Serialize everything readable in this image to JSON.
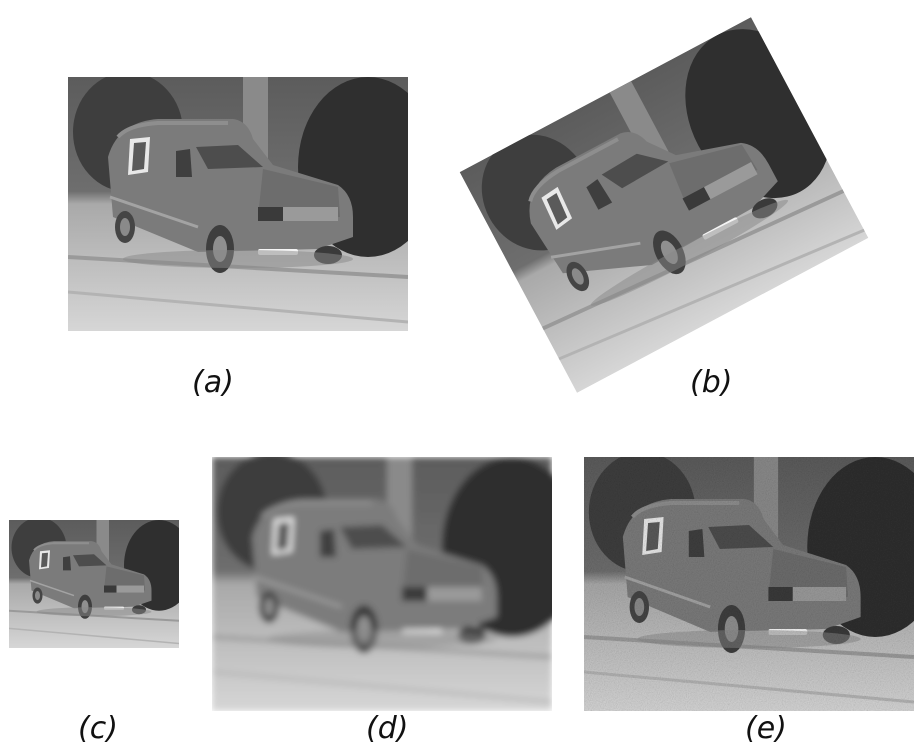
{
  "captions": {
    "a": "(a)",
    "b": "(b)",
    "c": "(c)",
    "d": "(d)",
    "e": "(e)"
  },
  "panels": [
    {
      "caption": "(a)",
      "variant": "original"
    },
    {
      "caption": "(b)",
      "variant": "rotated"
    },
    {
      "caption": "(c)",
      "variant": "downscaled"
    },
    {
      "caption": "(d)",
      "variant": "blurred"
    },
    {
      "caption": "(e)",
      "variant": "noisy"
    }
  ],
  "colors": {
    "background": "#ffffff",
    "sky": "#6e6e6e",
    "ground": "#c8c8c8",
    "van": "#7a7a7a",
    "tree": "#3a3a3a"
  }
}
